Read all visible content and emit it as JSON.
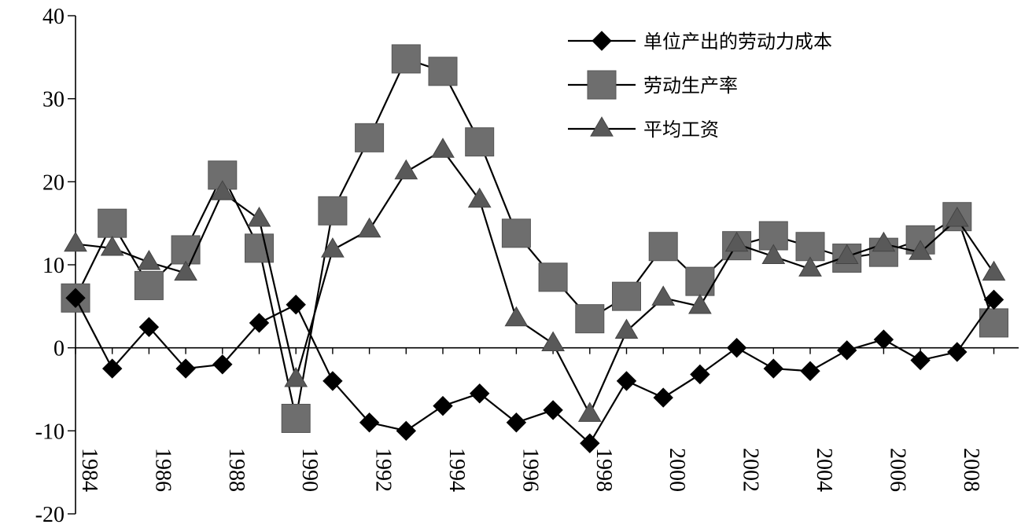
{
  "chart_data": {
    "type": "line",
    "title": "",
    "xlabel": "",
    "ylabel": "",
    "x": [
      1984,
      1985,
      1986,
      1987,
      1988,
      1989,
      1990,
      1991,
      1992,
      1993,
      1994,
      1995,
      1996,
      1997,
      1998,
      1999,
      2000,
      2001,
      2002,
      2003,
      2004,
      2005,
      2006,
      2007,
      2008,
      2009
    ],
    "xticks": [
      "1984",
      "1986",
      "1988",
      "1990",
      "1992",
      "1994",
      "1996",
      "1998",
      "2000",
      "2002",
      "2004",
      "2006",
      "2008"
    ],
    "yticks": [
      "40",
      "30",
      "20",
      "10",
      "0",
      "-10",
      "-20"
    ],
    "ylim": [
      -20,
      40
    ],
    "grid": false,
    "legend_position": "top-right",
    "series": [
      {
        "name": "单位产出的劳动力成本",
        "marker": "diamond",
        "color": "#000000",
        "values": [
          6,
          -2.5,
          2.5,
          -2.5,
          -2,
          3,
          5.2,
          -4,
          -9,
          -10,
          -7,
          -5.5,
          -9,
          -7.5,
          -11.5,
          -4,
          -6,
          -3.2,
          0,
          -2.5,
          -2.8,
          -0.3,
          1,
          -1.5,
          -0.5,
          5.8
        ]
      },
      {
        "name": "劳动生产率",
        "marker": "square",
        "color": "#6e6e6e",
        "values": [
          6,
          15,
          7.5,
          11.8,
          20.8,
          12,
          -8.5,
          16.5,
          25.3,
          34.8,
          33.3,
          24.8,
          13.8,
          8.5,
          3.5,
          6.2,
          12.2,
          8,
          12.3,
          13.5,
          12.2,
          10.8,
          11.5,
          13,
          15.8,
          3
        ]
      },
      {
        "name": "平均工资",
        "marker": "triangle",
        "color": "#595959",
        "values": [
          12.5,
          12,
          10.3,
          9,
          18.7,
          15.5,
          -3.8,
          11.8,
          14.2,
          21.2,
          23.8,
          17.8,
          3.5,
          0.5,
          -8,
          2,
          6,
          5,
          12.5,
          11,
          9.5,
          11,
          12.5,
          11.5,
          15.5,
          9
        ]
      }
    ]
  }
}
